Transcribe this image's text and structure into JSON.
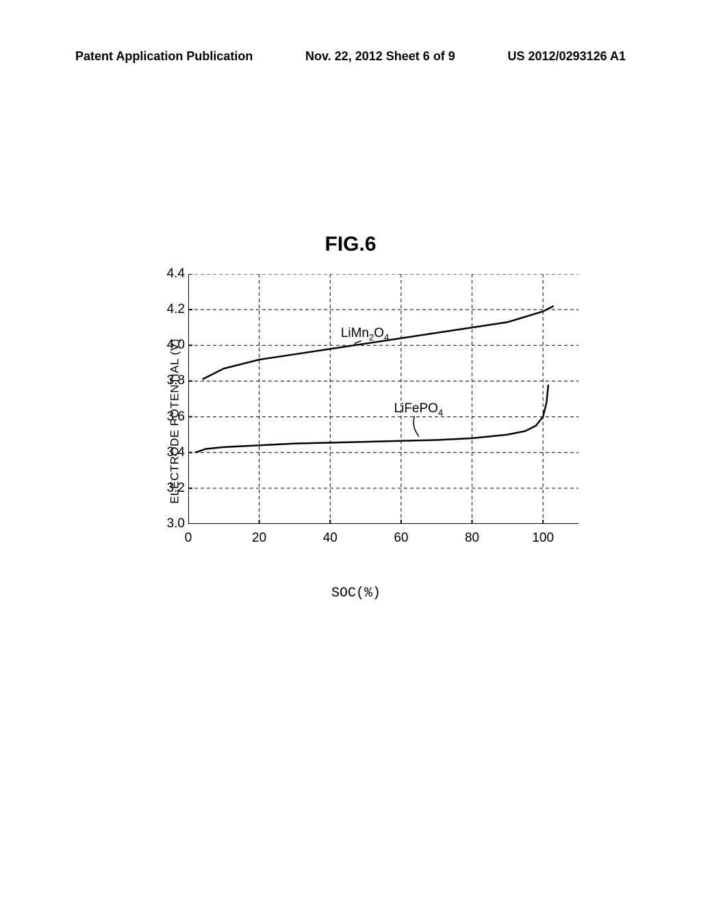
{
  "header": {
    "left": "Patent Application Publication",
    "center": "Nov. 22, 2012  Sheet 6 of 9",
    "right": "US 2012/0293126 A1"
  },
  "figure": {
    "title": "FIG.6",
    "chart": {
      "type": "line",
      "x_axis_label": "SOC(%)",
      "y_axis_label": "ELECTRODE POTENTIAL (V)",
      "xlim": [
        0,
        110
      ],
      "ylim": [
        3.0,
        4.4
      ],
      "x_ticks": [
        0,
        20,
        40,
        60,
        80,
        100
      ],
      "y_ticks": [
        3.0,
        3.2,
        3.4,
        3.6,
        3.8,
        4.0,
        4.2,
        4.4
      ],
      "grid_color": "#000000",
      "grid_dash": "5,4",
      "axis_color": "#000000",
      "background_color": "#ffffff",
      "line_width": 2.5,
      "axis_line_width": 2,
      "label_fontsize": 17,
      "tick_fontsize": 19,
      "series": [
        {
          "name": "LiMn2O4",
          "label_html": "LiMn<sub>2</sub>O<sub>4</sub>",
          "color": "#000000",
          "points": [
            [
              4,
              3.81
            ],
            [
              10,
              3.87
            ],
            [
              20,
              3.92
            ],
            [
              30,
              3.95
            ],
            [
              40,
              3.98
            ],
            [
              50,
              4.01
            ],
            [
              60,
              4.04
            ],
            [
              70,
              4.07
            ],
            [
              80,
              4.1
            ],
            [
              90,
              4.13
            ],
            [
              95,
              4.16
            ],
            [
              100,
              4.19
            ],
            [
              103,
              4.22
            ]
          ],
          "label_x": 43,
          "label_y": 4.07,
          "pointer_to": [
            47,
            4.0
          ]
        },
        {
          "name": "LiFePO4",
          "label_html": "LiFePO<sub>4</sub>",
          "color": "#000000",
          "points": [
            [
              2,
              3.4
            ],
            [
              5,
              3.42
            ],
            [
              10,
              3.43
            ],
            [
              20,
              3.44
            ],
            [
              30,
              3.45
            ],
            [
              40,
              3.455
            ],
            [
              50,
              3.46
            ],
            [
              60,
              3.465
            ],
            [
              70,
              3.47
            ],
            [
              80,
              3.48
            ],
            [
              90,
              3.5
            ],
            [
              95,
              3.52
            ],
            [
              98,
              3.55
            ],
            [
              100,
              3.6
            ],
            [
              101,
              3.68
            ],
            [
              101.5,
              3.78
            ]
          ],
          "label_x": 58,
          "label_y": 3.65,
          "pointer_to": [
            65,
            3.49
          ]
        }
      ]
    }
  }
}
